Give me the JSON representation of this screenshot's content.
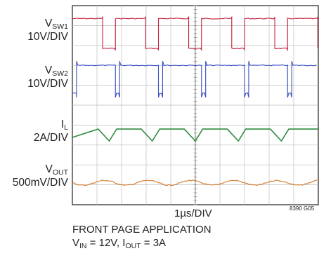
{
  "chart_data": {
    "type": "line",
    "chart_kind": "oscilloscope capture",
    "x_divisions": 10,
    "y_divisions": 10,
    "grid": true,
    "time_scale": "1µs/DIV",
    "figure_id": "8390 G05",
    "caption_line1": "FRONT PAGE APPLICATION",
    "caption_line2": {
      "vin_var": "V",
      "vin_sub": "IN",
      "vin_value": " = 12V, ",
      "iout_var": "I",
      "iout_sub": "OUT",
      "iout_value": " = 3A"
    },
    "period_divisions": 1.75,
    "edge_positions_divisions": [
      0.05,
      1.8,
      3.55,
      5.3,
      7.05,
      8.8
    ],
    "series": [
      {
        "name_main": "V",
        "name_sub": "SW1",
        "scale": "10V/DIV",
        "color": "#c41e3a",
        "high_level_divisions": 9.35,
        "low_level_divisions": 7.85,
        "high_duration_divisions": 0.75
      },
      {
        "name_main": "V",
        "name_sub": "SW2",
        "scale": "10V/DIV",
        "color": "#3a4fc1",
        "high_level_divisions": 7.0,
        "low_level_divisions": 5.6,
        "phase_offset_divisions": 0.15
      },
      {
        "name_main": "I",
        "name_sub": "L",
        "scale": "2A/DIV",
        "color": "#2e8b3e",
        "peak_level_divisions": 3.8,
        "valley_level_divisions": 3.2
      },
      {
        "name_main": "V",
        "name_sub": "OUT",
        "scale": "500mV/DIV",
        "color": "#d2782a",
        "mean_level_divisions": 1.1,
        "ripple_divisions": 0.12
      }
    ]
  }
}
